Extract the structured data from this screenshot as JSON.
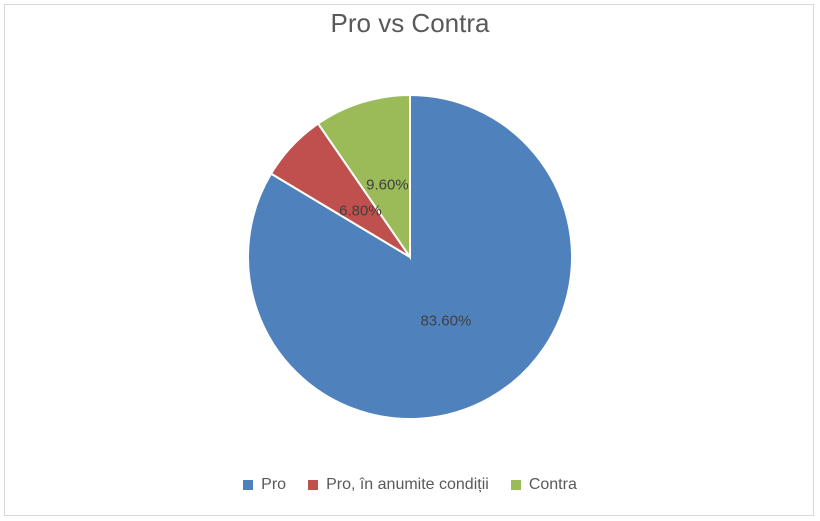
{
  "chart_data": {
    "type": "pie",
    "title": "Pro vs Contra",
    "categories": [
      "Pro",
      "Pro, în anumite condiții",
      "Contra"
    ],
    "values": [
      83.6,
      6.8,
      9.6
    ],
    "labels": [
      "83.60%",
      "6.80%",
      "9.60%"
    ],
    "colors": [
      "#4f81bd",
      "#c0504d",
      "#9bbb59"
    ],
    "legend_position": "bottom",
    "start_angle_deg": 0,
    "direction": "clockwise"
  }
}
